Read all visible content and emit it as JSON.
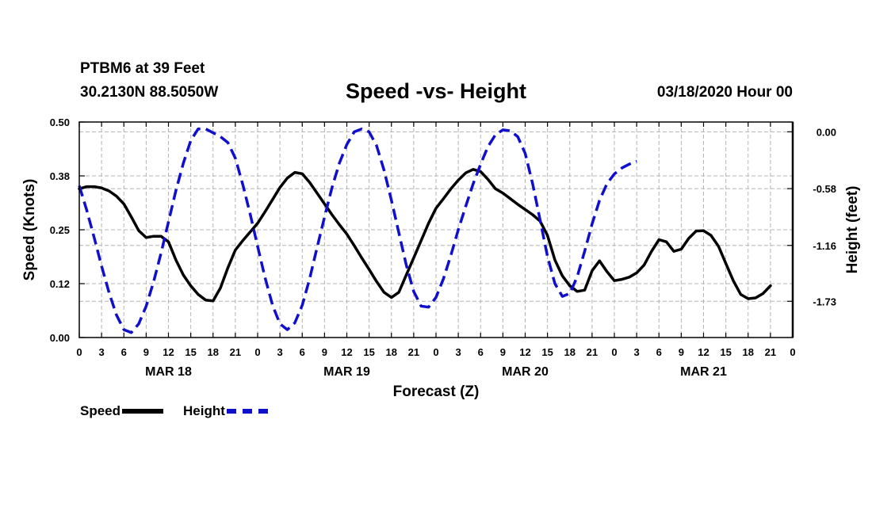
{
  "header": {
    "station": "PTBM6 at 39 Feet",
    "coords": "30.2130N 88.5050W",
    "title": "Speed -vs- Height",
    "datetime": "03/18/2020 Hour 00"
  },
  "legend": {
    "speed_label": "Speed",
    "height_label": "Height"
  },
  "colors": {
    "speed": "#000000",
    "height": "#1010cc",
    "grid": "#b4b4b4"
  },
  "chart_data": {
    "type": "line",
    "title": "Speed -vs- Height",
    "xlabel": "Forecast (Z)",
    "ylabel_left": "Speed (Knots)",
    "ylabel_right": "Height (feet)",
    "xlim": [
      0,
      96
    ],
    "ylim_left": [
      0,
      0.5
    ],
    "ylim_right": [
      -2.1,
      0.1
    ],
    "x_ticks": [
      0,
      3,
      6,
      9,
      12,
      15,
      18,
      21,
      24,
      27,
      30,
      33,
      36,
      39,
      42,
      45,
      48,
      51,
      54,
      57,
      60,
      63,
      66,
      69,
      72,
      75,
      78,
      81,
      84,
      87,
      90,
      93,
      96
    ],
    "x_tick_labels": [
      "0",
      "3",
      "6",
      "9",
      "12",
      "15",
      "18",
      "21",
      "0",
      "3",
      "6",
      "9",
      "12",
      "15",
      "18",
      "21",
      "0",
      "3",
      "6",
      "9",
      "12",
      "15",
      "18",
      "21",
      "0",
      "3",
      "6",
      "9",
      "12",
      "15",
      "18",
      "21",
      "0"
    ],
    "day_labels": [
      {
        "x": 12,
        "label": "MAR 18"
      },
      {
        "x": 36,
        "label": "MAR 19"
      },
      {
        "x": 60,
        "label": "MAR 20"
      },
      {
        "x": 84,
        "label": "MAR 21"
      }
    ],
    "y_left_ticks": [
      0,
      0.125,
      0.25,
      0.375,
      0.5
    ],
    "y_left_tick_labels": [
      "0.00",
      "0.12",
      "0.25",
      "0.38",
      "0.50"
    ],
    "y_right_ticks": [
      0,
      -0.58,
      -1.16,
      -1.73
    ],
    "y_right_tick_labels": [
      "0.00",
      "-0.58",
      "-1.16",
      "-1.73"
    ],
    "series": [
      {
        "name": "Speed",
        "axis": "left",
        "style": "solid",
        "points": [
          [
            0,
            0.345
          ],
          [
            1,
            0.35
          ],
          [
            2,
            0.35
          ],
          [
            3,
            0.347
          ],
          [
            4,
            0.34
          ],
          [
            5,
            0.328
          ],
          [
            6,
            0.31
          ],
          [
            7,
            0.28
          ],
          [
            8,
            0.248
          ],
          [
            9,
            0.232
          ],
          [
            10,
            0.235
          ],
          [
            11,
            0.235
          ],
          [
            12,
            0.222
          ],
          [
            13,
            0.18
          ],
          [
            14,
            0.145
          ],
          [
            15,
            0.12
          ],
          [
            16,
            0.1
          ],
          [
            17,
            0.087
          ],
          [
            18,
            0.085
          ],
          [
            19,
            0.115
          ],
          [
            20,
            0.162
          ],
          [
            21,
            0.203
          ],
          [
            22,
            0.225
          ],
          [
            23,
            0.245
          ],
          [
            24,
            0.265
          ],
          [
            25,
            0.292
          ],
          [
            26,
            0.32
          ],
          [
            27,
            0.348
          ],
          [
            28,
            0.37
          ],
          [
            29,
            0.383
          ],
          [
            30,
            0.38
          ],
          [
            31,
            0.36
          ],
          [
            32,
            0.335
          ],
          [
            33,
            0.31
          ],
          [
            34,
            0.285
          ],
          [
            35,
            0.262
          ],
          [
            36,
            0.24
          ],
          [
            37,
            0.213
          ],
          [
            38,
            0.185
          ],
          [
            39,
            0.158
          ],
          [
            40,
            0.13
          ],
          [
            41,
            0.105
          ],
          [
            42,
            0.093
          ],
          [
            43,
            0.105
          ],
          [
            44,
            0.145
          ],
          [
            45,
            0.185
          ],
          [
            46,
            0.225
          ],
          [
            47,
            0.265
          ],
          [
            48,
            0.3
          ],
          [
            49,
            0.322
          ],
          [
            50,
            0.345
          ],
          [
            51,
            0.365
          ],
          [
            52,
            0.382
          ],
          [
            53,
            0.39
          ],
          [
            54,
            0.385
          ],
          [
            55,
            0.367
          ],
          [
            56,
            0.345
          ],
          [
            57,
            0.335
          ],
          [
            58,
            0.322
          ],
          [
            59,
            0.309
          ],
          [
            60,
            0.297
          ],
          [
            61,
            0.285
          ],
          [
            62,
            0.27
          ],
          [
            63,
            0.237
          ],
          [
            64,
            0.18
          ],
          [
            65,
            0.143
          ],
          [
            66,
            0.12
          ],
          [
            67,
            0.107
          ],
          [
            68,
            0.11
          ],
          [
            69,
            0.155
          ],
          [
            70,
            0.178
          ],
          [
            71,
            0.153
          ],
          [
            72,
            0.132
          ],
          [
            73,
            0.135
          ],
          [
            74,
            0.14
          ],
          [
            75,
            0.15
          ],
          [
            76,
            0.168
          ],
          [
            77,
            0.2
          ],
          [
            78,
            0.227
          ],
          [
            79,
            0.222
          ],
          [
            80,
            0.2
          ],
          [
            81,
            0.205
          ],
          [
            82,
            0.23
          ],
          [
            83,
            0.247
          ],
          [
            84,
            0.248
          ],
          [
            85,
            0.237
          ],
          [
            86,
            0.212
          ],
          [
            87,
            0.172
          ],
          [
            88,
            0.132
          ],
          [
            89,
            0.1
          ],
          [
            90,
            0.09
          ],
          [
            91,
            0.092
          ],
          [
            92,
            0.102
          ],
          [
            93,
            0.12
          ]
        ]
      },
      {
        "name": "Height",
        "axis": "right",
        "style": "dashed",
        "points": [
          [
            0,
            -0.55
          ],
          [
            1,
            -0.8
          ],
          [
            2,
            -1.08
          ],
          [
            3,
            -1.37
          ],
          [
            4,
            -1.64
          ],
          [
            5,
            -1.87
          ],
          [
            6,
            -2.02
          ],
          [
            7,
            -2.05
          ],
          [
            8,
            -1.96
          ],
          [
            9,
            -1.78
          ],
          [
            10,
            -1.53
          ],
          [
            11,
            -1.24
          ],
          [
            12,
            -0.92
          ],
          [
            13,
            -0.6
          ],
          [
            14,
            -0.32
          ],
          [
            15,
            -0.09
          ],
          [
            16,
            0.03
          ],
          [
            17,
            0.03
          ],
          [
            18,
            -0.01
          ],
          [
            19,
            -0.05
          ],
          [
            20,
            -0.11
          ],
          [
            21,
            -0.27
          ],
          [
            22,
            -0.54
          ],
          [
            23,
            -0.84
          ],
          [
            24,
            -1.17
          ],
          [
            25,
            -1.49
          ],
          [
            26,
            -1.77
          ],
          [
            27,
            -1.96
          ],
          [
            28,
            -2.02
          ],
          [
            29,
            -1.95
          ],
          [
            30,
            -1.77
          ],
          [
            31,
            -1.5
          ],
          [
            32,
            -1.18
          ],
          [
            33,
            -0.87
          ],
          [
            34,
            -0.57
          ],
          [
            35,
            -0.32
          ],
          [
            36,
            -0.13
          ],
          [
            37,
            0.0
          ],
          [
            38,
            0.03
          ],
          [
            39,
            0.0
          ],
          [
            40,
            -0.14
          ],
          [
            41,
            -0.39
          ],
          [
            42,
            -0.7
          ],
          [
            43,
            -1.03
          ],
          [
            44,
            -1.36
          ],
          [
            45,
            -1.63
          ],
          [
            46,
            -1.78
          ],
          [
            47,
            -1.79
          ],
          [
            48,
            -1.69
          ],
          [
            49,
            -1.5
          ],
          [
            50,
            -1.26
          ],
          [
            51,
            -1.0
          ],
          [
            52,
            -0.76
          ],
          [
            53,
            -0.53
          ],
          [
            54,
            -0.33
          ],
          [
            55,
            -0.15
          ],
          [
            56,
            -0.03
          ],
          [
            57,
            0.02
          ],
          [
            58,
            0.01
          ],
          [
            59,
            -0.05
          ],
          [
            60,
            -0.22
          ],
          [
            61,
            -0.53
          ],
          [
            62,
            -0.9
          ],
          [
            63,
            -1.27
          ],
          [
            64,
            -1.55
          ],
          [
            65,
            -1.68
          ],
          [
            66,
            -1.65
          ],
          [
            67,
            -1.48
          ],
          [
            68,
            -1.22
          ],
          [
            69,
            -0.94
          ],
          [
            70,
            -0.7
          ],
          [
            71,
            -0.53
          ],
          [
            72,
            -0.43
          ],
          [
            73,
            -0.37
          ],
          [
            74,
            -0.33
          ],
          [
            75,
            -0.3
          ]
        ]
      }
    ],
    "grid": true,
    "legend_position": "bottom-left"
  }
}
